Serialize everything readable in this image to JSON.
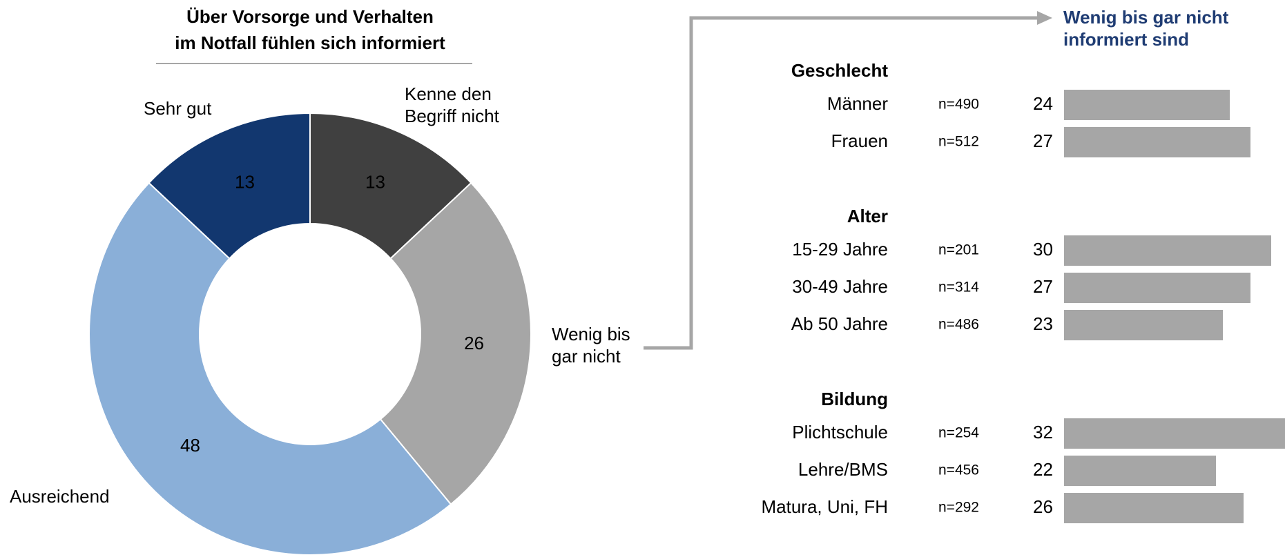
{
  "chart_data": [
    {
      "type": "donut",
      "title": [
        "Über Vorsorge und Verhalten",
        "im Notfall fühlen sich informiert"
      ],
      "categories": [
        "Kenne den Begriff nicht",
        "Wenig bis gar nicht",
        "Ausreichend",
        "Sehr gut"
      ],
      "values": [
        13,
        26,
        48,
        13
      ],
      "colors": [
        "#404040",
        "#a6a6a6",
        "#8aafd8",
        "#12376f"
      ]
    },
    {
      "type": "hbar",
      "title": "Wenig bis gar nicht informiert sind",
      "color": "#a6a6a6",
      "xlim": [
        0,
        32
      ],
      "groups": [
        {
          "name": "Geschlecht",
          "categories": [
            "Männer",
            "Frauen"
          ],
          "n": [
            "n=490",
            "n=512"
          ],
          "values": [
            24,
            27
          ]
        },
        {
          "name": "Alter",
          "categories": [
            "15-29 Jahre",
            "30-49 Jahre",
            "Ab 50 Jahre"
          ],
          "n": [
            "n=201",
            "n=314",
            "n=486"
          ],
          "values": [
            30,
            27,
            23
          ]
        },
        {
          "name": "Bildung",
          "categories": [
            "Plichtschule",
            "Lehre/BMS",
            "Matura, Uni, FH"
          ],
          "n": [
            "n=254",
            "n=456",
            "n=292"
          ],
          "values": [
            32,
            22,
            26
          ]
        }
      ]
    }
  ]
}
